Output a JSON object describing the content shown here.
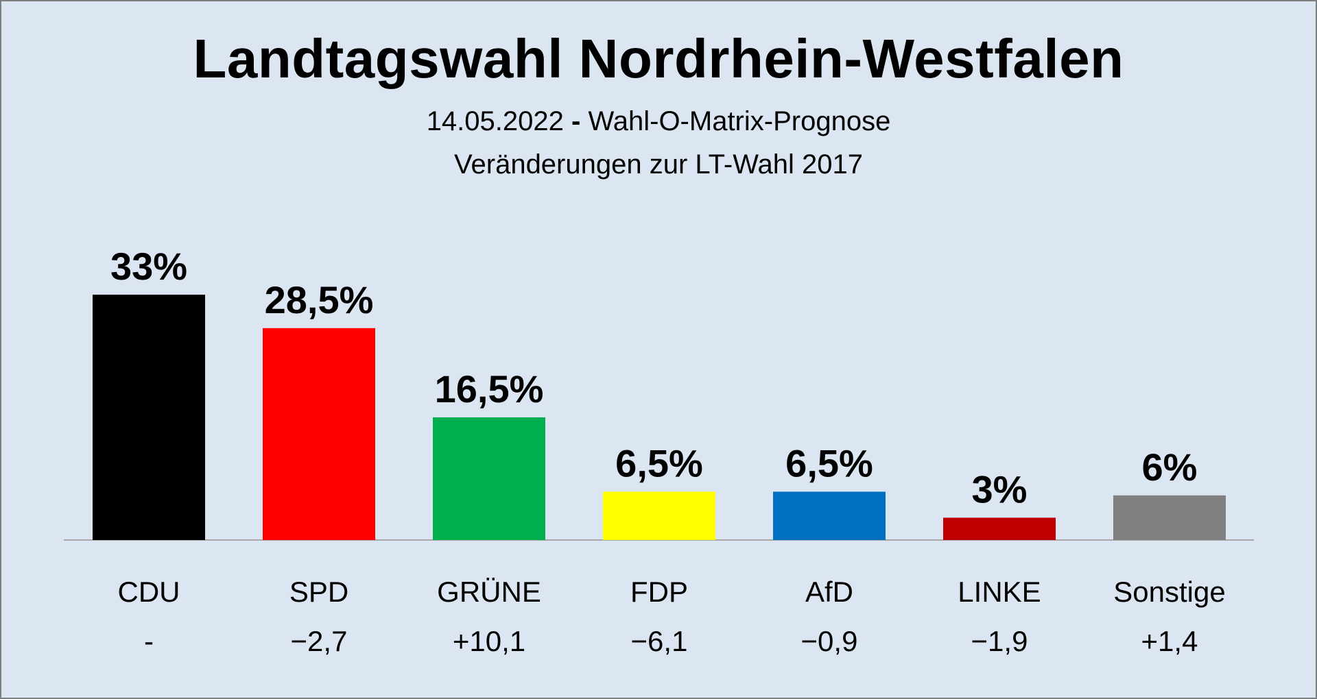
{
  "title": "Landtagswahl Nordrhein-Westfalen",
  "subtitle_date": "14.05.2022",
  "subtitle_sep": "-",
  "subtitle_method": "Wahl-O-Matrix-Prognose",
  "subtitle2": "Veränderungen zur LT-Wahl 2017",
  "chart_data": {
    "type": "bar",
    "title": "Landtagswahl Nordrhein-Westfalen",
    "xlabel": "",
    "ylabel": "",
    "ylim": [
      0,
      33
    ],
    "categories": [
      "CDU",
      "SPD",
      "GRÜNE",
      "FDP",
      "AfD",
      "LINKE",
      "Sonstige"
    ],
    "values": [
      33,
      28.5,
      16.5,
      6.5,
      6.5,
      3,
      6
    ],
    "value_labels": [
      "33%",
      "28,5%",
      "16,5%",
      "6,5%",
      "6,5%",
      "3%",
      "6%"
    ],
    "changes": [
      "-",
      "−2,7",
      "+10,1",
      "−6,1",
      "−0,9",
      "−1,9",
      "+1,4"
    ],
    "colors": [
      "#000000",
      "#ff0000",
      "#00b050",
      "#ffff00",
      "#0070c0",
      "#c00000",
      "#808080"
    ],
    "grid": false
  }
}
